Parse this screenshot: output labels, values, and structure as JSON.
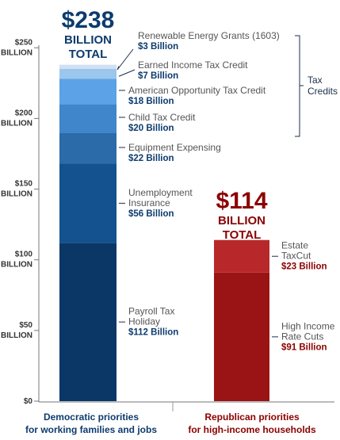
{
  "chart_data": {
    "type": "bar",
    "stacked": true,
    "ylim": [
      0,
      250
    ],
    "y_ticks": [
      {
        "value": 0,
        "line1": "$0",
        "line2": ""
      },
      {
        "value": 50,
        "line1": "$50",
        "line2": "BILLION"
      },
      {
        "value": 100,
        "line1": "$100",
        "line2": "BILLION"
      },
      {
        "value": 150,
        "line1": "$150",
        "line2": "BILLION"
      },
      {
        "value": 200,
        "line1": "$200",
        "line2": "BILLION"
      },
      {
        "value": 250,
        "line1": "$250",
        "line2": "BILLION"
      }
    ],
    "bars": [
      {
        "category_line1": "Democratic priorities",
        "category_line2": "for working families and jobs",
        "category_color": "#0d3b6e",
        "total_number": "$238",
        "total_line1": "BILLION",
        "total_line2": "TOTAL",
        "total_color": "#0d3b6e",
        "value_color": "#0d3b6e",
        "segments": [
          {
            "label": [
              "Payroll Tax",
              "Holiday"
            ],
            "value_label": "$112 Billion",
            "value": 112,
            "color": "#0b3767"
          },
          {
            "label": [
              "Unemployment",
              "Insurance"
            ],
            "value_label": "$56 Billion",
            "value": 56,
            "color": "#13528f"
          },
          {
            "label": [
              "Equipment Expensing"
            ],
            "value_label": "$22 Billion",
            "value": 22,
            "color": "#2b6ba9"
          },
          {
            "label": [
              "Child Tax Credit"
            ],
            "value_label": "$20 Billion",
            "value": 20,
            "color": "#3f86cb"
          },
          {
            "label": [
              "American Opportunity Tax Credit"
            ],
            "value_label": "$18 Billion",
            "value": 18,
            "color": "#5ba3e6"
          },
          {
            "label": [
              "Earned Income Tax Credit"
            ],
            "value_label": "$7 Billion",
            "value": 7,
            "color": "#9dc6ec"
          },
          {
            "label": [
              "Renewable Energy Grants (1603)"
            ],
            "value_label": "$3 Billion",
            "value": 3,
            "color": "#cfe1f3"
          }
        ]
      },
      {
        "category_line1": "Republican priorities",
        "category_line2": "for high-income households",
        "category_color": "#8b0000",
        "total_number": "$114",
        "total_line1": "BILLION",
        "total_line2": "TOTAL",
        "total_color": "#8b0000",
        "value_color": "#8b0000",
        "segments": [
          {
            "label": [
              "High Income",
              "Rate Cuts"
            ],
            "value_label": "$91 Billion",
            "value": 91,
            "color": "#9a1416"
          },
          {
            "label": [
              "Estate",
              "TaxCut"
            ],
            "value_label": "$23 Billion",
            "value": 23,
            "color": "#b8282b"
          }
        ]
      }
    ],
    "bracket": {
      "label_line1": "Tax",
      "label_line2": "Credits"
    }
  }
}
